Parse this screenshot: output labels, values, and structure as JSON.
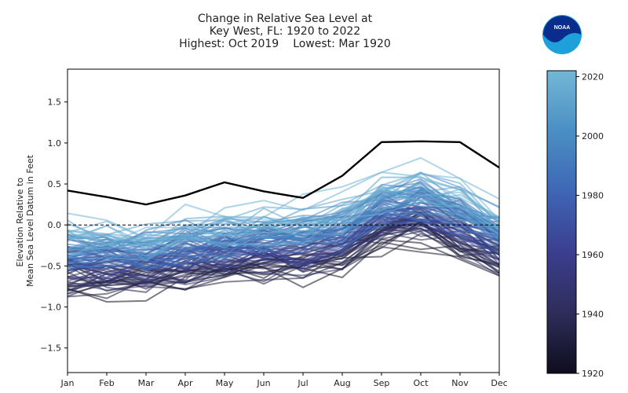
{
  "header": {
    "title_line1": "Change in Relative Sea Level at",
    "title_line2": "Key West, FL: 1920 to 2022",
    "highest": "Highest: Oct 2019",
    "lowest": "Lowest: Mar 1920"
  },
  "logo": {
    "text": "NOAA",
    "colors": {
      "outer": "#1ea0da",
      "inner": "#0a2c8c"
    }
  },
  "chart_data": {
    "type": "line",
    "xlabel": "",
    "ylabel": "Elevation Relative to\nMean Sea Level Datum in Feet",
    "categories": [
      "Jan",
      "Feb",
      "Mar",
      "Apr",
      "May",
      "Jun",
      "Jul",
      "Aug",
      "Sep",
      "Oct",
      "Nov",
      "Dec"
    ],
    "ylim": [
      -1.8,
      1.9
    ],
    "yticks": [
      -1.5,
      -1.0,
      -0.5,
      0.0,
      0.5,
      1.0,
      1.5
    ],
    "ytick_labels": [
      "−1.5",
      "−1.0",
      "−0.5",
      "0.0",
      "0.5",
      "1.0",
      "1.5"
    ],
    "reference_line": {
      "y": 0.0,
      "style": "dashed",
      "color": "#000000"
    },
    "years": [
      1920,
      2022
    ],
    "year_series_shape": {
      "base": [
        -0.28,
        -0.32,
        -0.3,
        -0.22,
        -0.15,
        -0.12,
        -0.1,
        0.0,
        0.26,
        0.35,
        0.18,
        -0.05
      ],
      "start_offset": -0.45,
      "end_offset": 0.2,
      "noise_amplitude": 0.18
    },
    "highlight_series": {
      "name": "",
      "color": "#000000",
      "values": [
        0.42,
        0.34,
        0.25,
        0.36,
        0.52,
        0.41,
        0.33,
        0.6,
        1.01,
        1.02,
        1.01,
        0.7
      ]
    },
    "colorbar": {
      "min": 1920,
      "max": 2022,
      "ticks": [
        1920,
        1940,
        1960,
        1980,
        2000,
        2020
      ],
      "tick_labels": [
        "1920",
        "1940",
        "1960",
        "1980",
        "2000",
        "2020"
      ],
      "colors": [
        "#0e0d1e",
        "#2e2d5a",
        "#3b3e8f",
        "#3e66b4",
        "#4a8fc4",
        "#73b7d6"
      ]
    },
    "grid": false,
    "legend": "colorbar-right"
  }
}
